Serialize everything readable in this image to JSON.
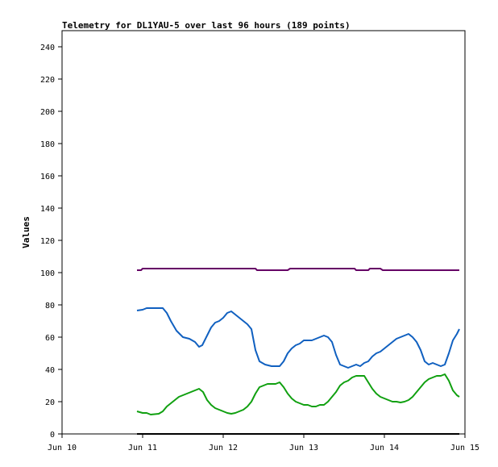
{
  "chart_data": {
    "type": "line",
    "title": "Telemetry for DL1YAU-5 over last 96 hours (189 points)",
    "xlabel": "",
    "ylabel": "Values",
    "ylim": [
      0,
      250
    ],
    "xlim": [
      0,
      5
    ],
    "grid": false,
    "legend": "none",
    "x_tick_labels": [
      "Jun 10",
      "Jun 11",
      "Jun 12",
      "Jun 13",
      "Jun 14",
      "Jun 15"
    ],
    "x_tick_values": [
      0,
      1,
      2,
      3,
      4,
      5
    ],
    "y_ticks": [
      0,
      20,
      40,
      60,
      80,
      100,
      120,
      140,
      160,
      180,
      200,
      220,
      240
    ],
    "series": [
      {
        "color": "#660066",
        "points": [
          [
            0.93,
            101.5
          ],
          [
            0.98,
            101.5
          ],
          [
            1.0,
            102.5
          ],
          [
            1.2,
            102.5
          ],
          [
            1.4,
            102.5
          ],
          [
            1.6,
            102.5
          ],
          [
            1.8,
            102.5
          ],
          [
            2.0,
            102.5
          ],
          [
            2.2,
            102.5
          ],
          [
            2.4,
            102.5
          ],
          [
            2.42,
            101.5
          ],
          [
            2.6,
            101.5
          ],
          [
            2.8,
            101.5
          ],
          [
            2.83,
            102.5
          ],
          [
            3.0,
            102.5
          ],
          [
            3.2,
            102.5
          ],
          [
            3.4,
            102.5
          ],
          [
            3.63,
            102.5
          ],
          [
            3.65,
            101.5
          ],
          [
            3.8,
            101.5
          ],
          [
            3.82,
            102.5
          ],
          [
            3.95,
            102.5
          ],
          [
            3.98,
            101.5
          ],
          [
            4.2,
            101.5
          ],
          [
            4.4,
            101.5
          ],
          [
            4.6,
            101.5
          ],
          [
            4.8,
            101.5
          ],
          [
            4.93,
            101.5
          ]
        ]
      },
      {
        "color": "#1060c0",
        "points": [
          [
            0.93,
            76.5
          ],
          [
            1.0,
            77
          ],
          [
            1.05,
            78
          ],
          [
            1.15,
            78
          ],
          [
            1.25,
            78
          ],
          [
            1.3,
            75
          ],
          [
            1.35,
            70
          ],
          [
            1.42,
            64
          ],
          [
            1.5,
            60
          ],
          [
            1.58,
            59
          ],
          [
            1.65,
            57
          ],
          [
            1.7,
            54
          ],
          [
            1.74,
            55
          ],
          [
            1.8,
            61
          ],
          [
            1.85,
            66
          ],
          [
            1.9,
            69
          ],
          [
            1.95,
            70
          ],
          [
            2.0,
            72
          ],
          [
            2.05,
            75
          ],
          [
            2.1,
            76
          ],
          [
            2.15,
            74
          ],
          [
            2.2,
            72
          ],
          [
            2.25,
            70
          ],
          [
            2.3,
            68
          ],
          [
            2.35,
            65
          ],
          [
            2.4,
            52
          ],
          [
            2.45,
            45
          ],
          [
            2.52,
            43
          ],
          [
            2.6,
            42
          ],
          [
            2.65,
            42
          ],
          [
            2.7,
            42
          ],
          [
            2.75,
            45
          ],
          [
            2.8,
            50
          ],
          [
            2.85,
            53
          ],
          [
            2.9,
            55
          ],
          [
            2.95,
            56
          ],
          [
            3.0,
            58
          ],
          [
            3.05,
            58
          ],
          [
            3.1,
            58
          ],
          [
            3.15,
            59
          ],
          [
            3.2,
            60
          ],
          [
            3.25,
            61
          ],
          [
            3.3,
            60
          ],
          [
            3.35,
            57
          ],
          [
            3.4,
            49
          ],
          [
            3.45,
            43
          ],
          [
            3.5,
            42
          ],
          [
            3.55,
            41
          ],
          [
            3.6,
            42
          ],
          [
            3.65,
            43
          ],
          [
            3.7,
            42
          ],
          [
            3.75,
            44
          ],
          [
            3.8,
            45
          ],
          [
            3.85,
            48
          ],
          [
            3.9,
            50
          ],
          [
            3.95,
            51
          ],
          [
            4.0,
            53
          ],
          [
            4.05,
            55
          ],
          [
            4.1,
            57
          ],
          [
            4.15,
            59
          ],
          [
            4.2,
            60
          ],
          [
            4.25,
            61
          ],
          [
            4.3,
            62
          ],
          [
            4.35,
            60
          ],
          [
            4.4,
            57
          ],
          [
            4.45,
            52
          ],
          [
            4.5,
            45
          ],
          [
            4.55,
            43
          ],
          [
            4.6,
            44
          ],
          [
            4.65,
            43
          ],
          [
            4.7,
            42
          ],
          [
            4.75,
            43
          ],
          [
            4.8,
            50
          ],
          [
            4.85,
            58
          ],
          [
            4.9,
            62
          ],
          [
            4.93,
            65
          ]
        ]
      },
      {
        "color": "#10a010",
        "points": [
          [
            0.93,
            14
          ],
          [
            1.0,
            13
          ],
          [
            1.05,
            13
          ],
          [
            1.1,
            12
          ],
          [
            1.2,
            12.5
          ],
          [
            1.25,
            14
          ],
          [
            1.3,
            17
          ],
          [
            1.35,
            19
          ],
          [
            1.4,
            21
          ],
          [
            1.45,
            23
          ],
          [
            1.5,
            24
          ],
          [
            1.55,
            25
          ],
          [
            1.6,
            26
          ],
          [
            1.65,
            27
          ],
          [
            1.7,
            28
          ],
          [
            1.75,
            26
          ],
          [
            1.8,
            21
          ],
          [
            1.85,
            18
          ],
          [
            1.9,
            16
          ],
          [
            1.95,
            15
          ],
          [
            2.0,
            14
          ],
          [
            2.05,
            13
          ],
          [
            2.1,
            12.5
          ],
          [
            2.15,
            13
          ],
          [
            2.2,
            14
          ],
          [
            2.25,
            15
          ],
          [
            2.3,
            17
          ],
          [
            2.35,
            20
          ],
          [
            2.4,
            25
          ],
          [
            2.45,
            29
          ],
          [
            2.5,
            30
          ],
          [
            2.55,
            31
          ],
          [
            2.6,
            31
          ],
          [
            2.65,
            31
          ],
          [
            2.7,
            32
          ],
          [
            2.75,
            29
          ],
          [
            2.8,
            25
          ],
          [
            2.85,
            22
          ],
          [
            2.9,
            20
          ],
          [
            2.95,
            19
          ],
          [
            3.0,
            18
          ],
          [
            3.05,
            18
          ],
          [
            3.1,
            17
          ],
          [
            3.15,
            17
          ],
          [
            3.2,
            18
          ],
          [
            3.25,
            18
          ],
          [
            3.3,
            20
          ],
          [
            3.35,
            23
          ],
          [
            3.4,
            26
          ],
          [
            3.45,
            30
          ],
          [
            3.5,
            32
          ],
          [
            3.55,
            33
          ],
          [
            3.6,
            35
          ],
          [
            3.65,
            36
          ],
          [
            3.7,
            36
          ],
          [
            3.75,
            36
          ],
          [
            3.8,
            32
          ],
          [
            3.85,
            28
          ],
          [
            3.9,
            25
          ],
          [
            3.95,
            23
          ],
          [
            4.0,
            22
          ],
          [
            4.05,
            21
          ],
          [
            4.1,
            20
          ],
          [
            4.15,
            20
          ],
          [
            4.2,
            19.5
          ],
          [
            4.25,
            20
          ],
          [
            4.3,
            21
          ],
          [
            4.35,
            23
          ],
          [
            4.4,
            26
          ],
          [
            4.45,
            29
          ],
          [
            4.5,
            32
          ],
          [
            4.55,
            34
          ],
          [
            4.6,
            35
          ],
          [
            4.65,
            36
          ],
          [
            4.7,
            36
          ],
          [
            4.75,
            37
          ],
          [
            4.8,
            33
          ],
          [
            4.85,
            27
          ],
          [
            4.9,
            24
          ],
          [
            4.93,
            23
          ]
        ]
      },
      {
        "color": "#000000",
        "points": [
          [
            0.93,
            0
          ],
          [
            4.93,
            0
          ]
        ]
      }
    ]
  }
}
